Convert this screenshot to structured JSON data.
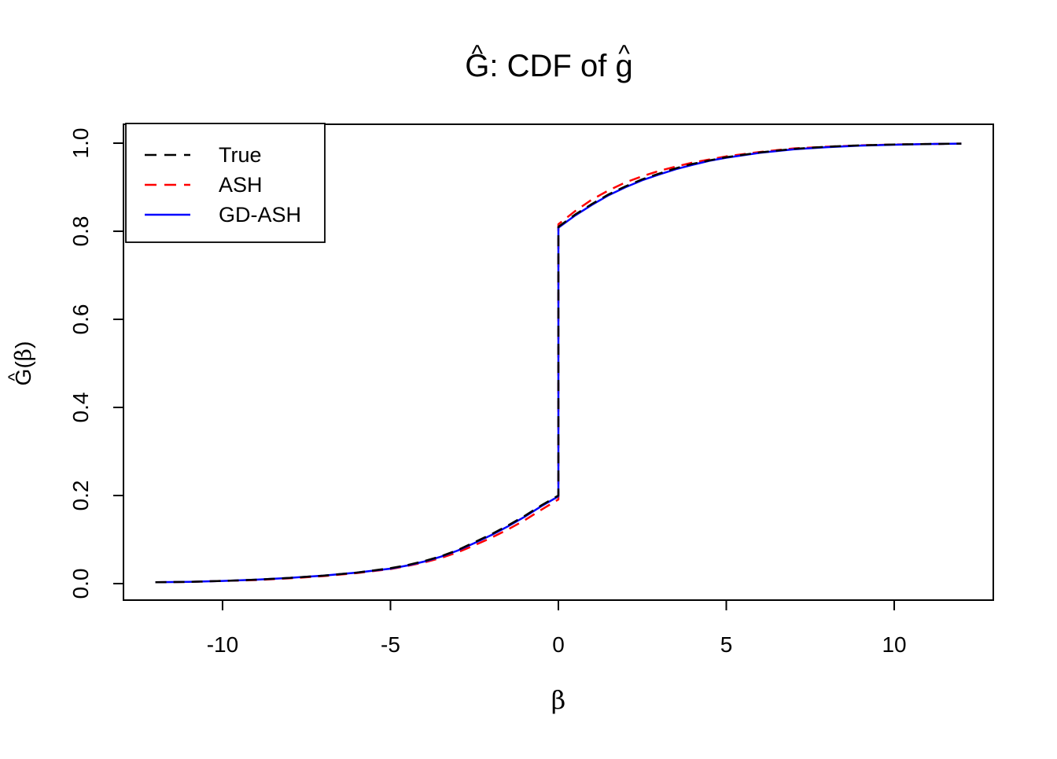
{
  "title": {
    "text": "Ĝ: CDF of ĝ",
    "parts": [
      {
        "text": "G",
        "hat": true
      },
      {
        "text": ": CDF of ",
        "hat": false
      },
      {
        "text": "g",
        "hat": true
      }
    ]
  },
  "x_axis": {
    "label": "β",
    "tick_labels": [
      "-10",
      "-5",
      "0",
      "5",
      "10"
    ]
  },
  "y_axis": {
    "label_text": "Ĝ(β)",
    "label_parts": [
      {
        "text": "G",
        "hat": true
      },
      {
        "text": "(",
        "hat": false
      },
      {
        "text": "β",
        "hat": false,
        "serif": true
      },
      {
        "text": ")",
        "hat": false
      }
    ],
    "tick_labels": [
      "0.0",
      "0.2",
      "0.4",
      "0.6",
      "0.8",
      "1.0"
    ]
  },
  "legend": {
    "items": [
      {
        "label": "True",
        "color": "#000000",
        "dashed": true
      },
      {
        "label": "ASH",
        "color": "#FF0000",
        "dashed": true
      },
      {
        "label": "GD-ASH",
        "color": "#0000FF",
        "dashed": false
      }
    ]
  },
  "colors": {
    "true_line": "#000000",
    "ash_line": "#FF0000",
    "gdash_line": "#0000FF",
    "axis": "#000000",
    "background": "#FFFFFF"
  },
  "chart_data": {
    "type": "line",
    "title": "Ĝ: CDF of ĝ",
    "xlabel": "β",
    "ylabel": "Ĝ(β)",
    "xlim": [
      -12.95,
      12.95
    ],
    "ylim": [
      -0.0375,
      1.0429
    ],
    "x_ticks": [
      -10,
      -5,
      0,
      5,
      10
    ],
    "y_ticks": [
      0.0,
      0.2,
      0.4,
      0.6,
      0.8,
      1.0
    ],
    "grid": false,
    "legend_position": "top-left",
    "note": "CDF with point mass at 0: jump from ~0.20 to ~0.81",
    "series": [
      {
        "name": "True",
        "color": "#000000",
        "linestyle": "dashed",
        "z": 3,
        "points": [
          [
            -12,
            0.003
          ],
          [
            -11,
            0.004
          ],
          [
            -10,
            0.006
          ],
          [
            -9,
            0.009
          ],
          [
            -8,
            0.013
          ],
          [
            -7,
            0.018
          ],
          [
            -6,
            0.025
          ],
          [
            -5,
            0.035
          ],
          [
            -4.5,
            0.042
          ],
          [
            -4,
            0.051
          ],
          [
            -3.5,
            0.062
          ],
          [
            -3,
            0.076
          ],
          [
            -2.5,
            0.094
          ],
          [
            -2,
            0.112
          ],
          [
            -1.5,
            0.132
          ],
          [
            -1,
            0.154
          ],
          [
            -0.5,
            0.178
          ],
          [
            0,
            0.2
          ],
          [
            0,
            0.81
          ],
          [
            0.5,
            0.838
          ],
          [
            1,
            0.862
          ],
          [
            1.5,
            0.884
          ],
          [
            2,
            0.902
          ],
          [
            2.5,
            0.918
          ],
          [
            3,
            0.931
          ],
          [
            3.5,
            0.943
          ],
          [
            4,
            0.953
          ],
          [
            4.5,
            0.961
          ],
          [
            5,
            0.968
          ],
          [
            6,
            0.979
          ],
          [
            7,
            0.987
          ],
          [
            8,
            0.992
          ],
          [
            9,
            0.995
          ],
          [
            10,
            0.997
          ],
          [
            11,
            0.998
          ],
          [
            12,
            0.999
          ]
        ]
      },
      {
        "name": "ASH",
        "color": "#FF0000",
        "linestyle": "dashed",
        "z": 1,
        "points": [
          [
            -12,
            0.003
          ],
          [
            -11,
            0.004
          ],
          [
            -10,
            0.006
          ],
          [
            -9,
            0.008
          ],
          [
            -8,
            0.012
          ],
          [
            -7,
            0.017
          ],
          [
            -6,
            0.024
          ],
          [
            -5,
            0.033
          ],
          [
            -4.5,
            0.04
          ],
          [
            -4,
            0.048
          ],
          [
            -3.5,
            0.058
          ],
          [
            -3,
            0.071
          ],
          [
            -2.5,
            0.087
          ],
          [
            -2,
            0.104
          ],
          [
            -1.5,
            0.123
          ],
          [
            -1,
            0.144
          ],
          [
            -0.5,
            0.168
          ],
          [
            0,
            0.191
          ],
          [
            0,
            0.816
          ],
          [
            0.5,
            0.846
          ],
          [
            1,
            0.872
          ],
          [
            1.5,
            0.893
          ],
          [
            2,
            0.911
          ],
          [
            2.5,
            0.925
          ],
          [
            3,
            0.937
          ],
          [
            3.5,
            0.947
          ],
          [
            4,
            0.956
          ],
          [
            4.5,
            0.963
          ],
          [
            5,
            0.97
          ],
          [
            6,
            0.98
          ],
          [
            7,
            0.988
          ],
          [
            8,
            0.992
          ],
          [
            9,
            0.995
          ],
          [
            10,
            0.997
          ],
          [
            11,
            0.998
          ],
          [
            12,
            0.999
          ]
        ]
      },
      {
        "name": "GD-ASH",
        "color": "#0000FF",
        "linestyle": "solid",
        "z": 2,
        "points": [
          [
            -12,
            0.003
          ],
          [
            -11,
            0.004
          ],
          [
            -10,
            0.006
          ],
          [
            -9,
            0.009
          ],
          [
            -8,
            0.013
          ],
          [
            -7,
            0.018
          ],
          [
            -6,
            0.025
          ],
          [
            -5,
            0.034
          ],
          [
            -4.5,
            0.041
          ],
          [
            -4,
            0.05
          ],
          [
            -3.5,
            0.061
          ],
          [
            -3,
            0.075
          ],
          [
            -2.5,
            0.092
          ],
          [
            -2,
            0.11
          ],
          [
            -1.5,
            0.13
          ],
          [
            -1,
            0.152
          ],
          [
            -0.5,
            0.176
          ],
          [
            0,
            0.198
          ],
          [
            0,
            0.808
          ],
          [
            0.5,
            0.836
          ],
          [
            1,
            0.86
          ],
          [
            1.5,
            0.882
          ],
          [
            2,
            0.9
          ],
          [
            2.5,
            0.916
          ],
          [
            3,
            0.929
          ],
          [
            3.5,
            0.941
          ],
          [
            4,
            0.951
          ],
          [
            4.5,
            0.96
          ],
          [
            5,
            0.967
          ],
          [
            6,
            0.978
          ],
          [
            7,
            0.986
          ],
          [
            8,
            0.991
          ],
          [
            9,
            0.9945
          ],
          [
            10,
            0.9965
          ],
          [
            11,
            0.998
          ],
          [
            12,
            0.999
          ]
        ]
      }
    ]
  }
}
